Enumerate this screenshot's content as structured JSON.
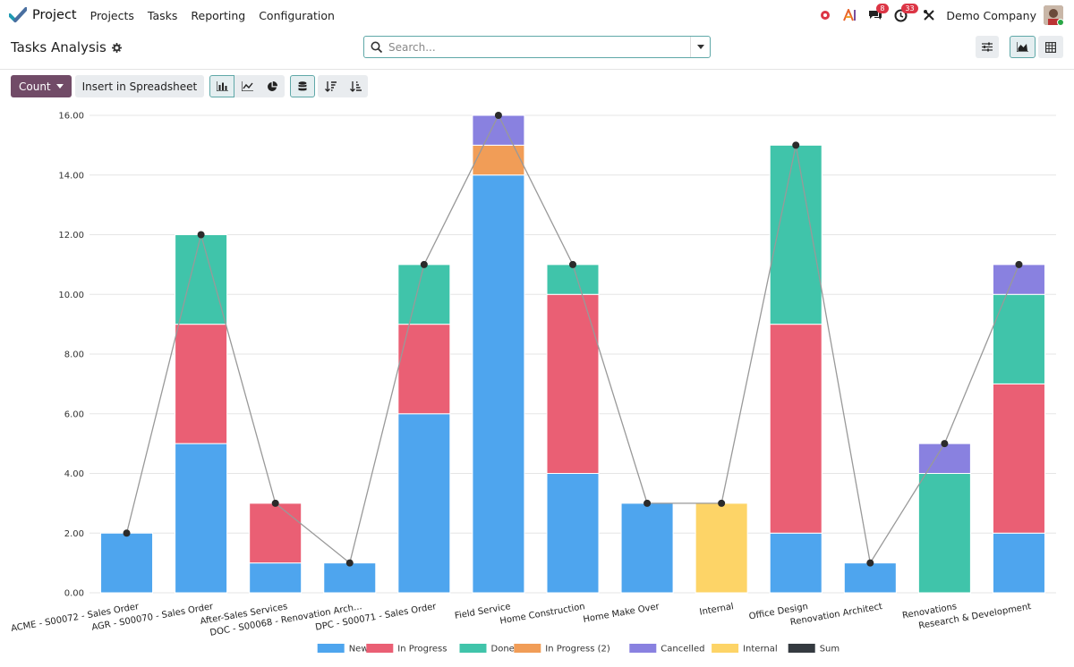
{
  "app": {
    "name": "Project",
    "menu": [
      "Projects",
      "Tasks",
      "Reporting",
      "Configuration"
    ]
  },
  "systray": {
    "messages_badge": "8",
    "activity_badge": "33",
    "company": "Demo Company"
  },
  "control_panel": {
    "title": "Tasks Analysis",
    "search_placeholder": "Search..."
  },
  "toolbar": {
    "measure_label": "Count",
    "spreadsheet_label": "Insert in Spreadsheet"
  },
  "colors": {
    "brand": "#714b67",
    "accent": "#017e84"
  },
  "chart_data": {
    "type": "bar",
    "stacked": true,
    "ylim": [
      0,
      16
    ],
    "yticks": [
      "0.00",
      "2.00",
      "4.00",
      "6.00",
      "8.00",
      "10.00",
      "12.00",
      "14.00",
      "16.00"
    ],
    "grid": true,
    "legend_position": "bottom",
    "categories": [
      "ACME - S00072 - Sales Order",
      "AGR - S00070 - Sales Order",
      "After-Sales Services",
      "DOC - S00068 - Renovation Arch...",
      "DPC - S00071 - Sales Order",
      "Field Service",
      "Home Construction",
      "Home Make Over",
      "Internal",
      "Office Design",
      "Renovation Architect",
      "Renovations",
      "Research & Development"
    ],
    "series": [
      {
        "name": "New",
        "color": "#4ea5ee",
        "values": [
          2,
          5,
          1,
          1,
          6,
          14,
          4,
          3,
          0,
          2,
          1,
          0,
          2
        ]
      },
      {
        "name": "In Progress",
        "color": "#ea5f74",
        "values": [
          0,
          4,
          2,
          0,
          3,
          0,
          6,
          0,
          0,
          7,
          0,
          0,
          5
        ]
      },
      {
        "name": "Done",
        "color": "#40c4aa",
        "values": [
          0,
          3,
          0,
          0,
          2,
          0,
          1,
          0,
          0,
          6,
          0,
          4,
          3
        ]
      },
      {
        "name": "In Progress (2)",
        "color": "#f19d57",
        "values": [
          0,
          0,
          0,
          0,
          0,
          1,
          0,
          0,
          0,
          0,
          0,
          0,
          0
        ]
      },
      {
        "name": "Cancelled",
        "color": "#8981e0",
        "values": [
          0,
          0,
          0,
          0,
          0,
          1,
          0,
          0,
          0,
          0,
          0,
          1,
          1
        ]
      },
      {
        "name": "Internal",
        "color": "#fdd467",
        "values": [
          0,
          0,
          0,
          0,
          0,
          0,
          0,
          0,
          3,
          0,
          0,
          0,
          0
        ]
      }
    ],
    "sum_series": {
      "name": "Sum",
      "color": "#343a40",
      "values": [
        2,
        12,
        3,
        1,
        11,
        16,
        11,
        3,
        3,
        15,
        1,
        5,
        11
      ]
    }
  }
}
